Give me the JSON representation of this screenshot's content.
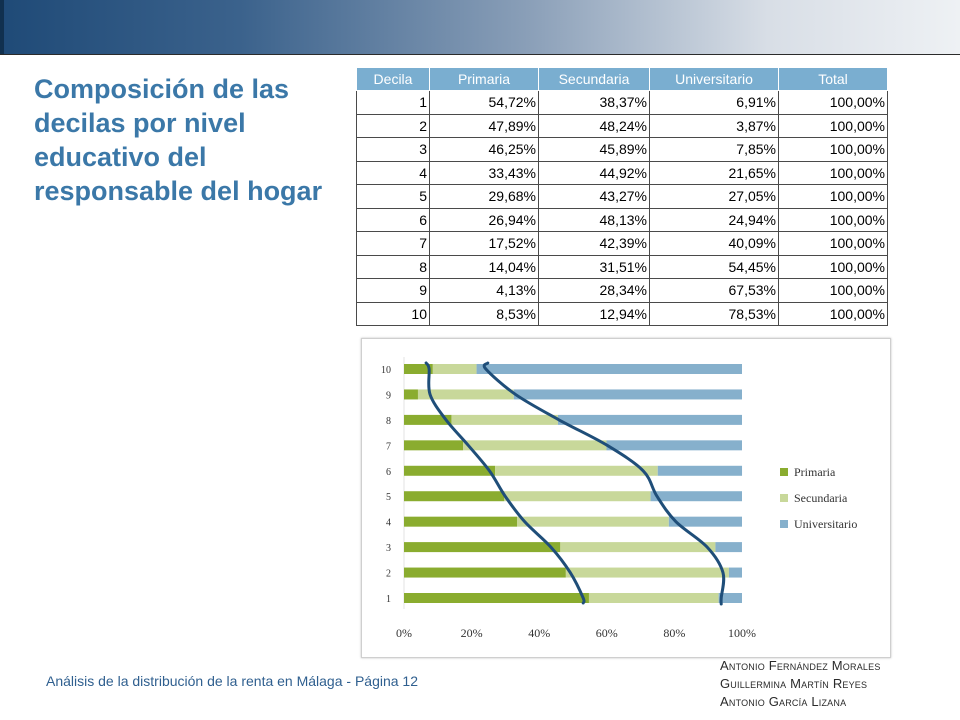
{
  "slide": {
    "title": "Composición de las decilas por nivel educativo del responsable del hogar",
    "footer": "Análisis de la distribución de la renta en Málaga  -  Página 12",
    "authors": [
      "Antonio Fernández Morales",
      "Guillermina Martín Reyes",
      "Antonio García Lizana"
    ]
  },
  "table": {
    "headers": [
      "Decila",
      "Primaria",
      "Secundaria",
      "Universitario",
      "Total"
    ],
    "rows": [
      [
        "1",
        "54,72%",
        "38,37%",
        "6,91%",
        "100,00%"
      ],
      [
        "2",
        "47,89%",
        "48,24%",
        "3,87%",
        "100,00%"
      ],
      [
        "3",
        "46,25%",
        "45,89%",
        "7,85%",
        "100,00%"
      ],
      [
        "4",
        "33,43%",
        "44,92%",
        "21,65%",
        "100,00%"
      ],
      [
        "5",
        "29,68%",
        "43,27%",
        "27,05%",
        "100,00%"
      ],
      [
        "6",
        "26,94%",
        "48,13%",
        "24,94%",
        "100,00%"
      ],
      [
        "7",
        "17,52%",
        "42,39%",
        "40,09%",
        "100,00%"
      ],
      [
        "8",
        "14,04%",
        "31,51%",
        "54,45%",
        "100,00%"
      ],
      [
        "9",
        "4,13%",
        "28,34%",
        "67,53%",
        "100,00%"
      ],
      [
        "10",
        "8,53%",
        "12,94%",
        "78,53%",
        "100,00%"
      ]
    ]
  },
  "chart_data": {
    "type": "bar",
    "orientation": "horizontal",
    "stacked": "percent",
    "categories": [
      "1",
      "2",
      "3",
      "4",
      "5",
      "6",
      "7",
      "8",
      "9",
      "10"
    ],
    "series": [
      {
        "name": "Primaria",
        "color": "#8aac2f",
        "values": [
          54.72,
          47.89,
          46.25,
          33.43,
          29.68,
          26.94,
          17.52,
          14.04,
          4.13,
          8.53
        ]
      },
      {
        "name": "Secundaria",
        "color": "#c8d89a",
        "values": [
          38.37,
          48.24,
          45.89,
          44.92,
          43.27,
          48.13,
          42.39,
          31.51,
          28.34,
          12.94
        ]
      },
      {
        "name": "Universitario",
        "color": "#86b0cc",
        "values": [
          6.91,
          3.87,
          7.85,
          21.65,
          27.05,
          24.94,
          40.09,
          54.45,
          67.53,
          78.53
        ]
      }
    ],
    "xticks": [
      "0%",
      "20%",
      "40%",
      "60%",
      "80%",
      "100%"
    ],
    "xlim": [
      0,
      100
    ],
    "legend": "right",
    "trend_color": "#1f4e79"
  }
}
